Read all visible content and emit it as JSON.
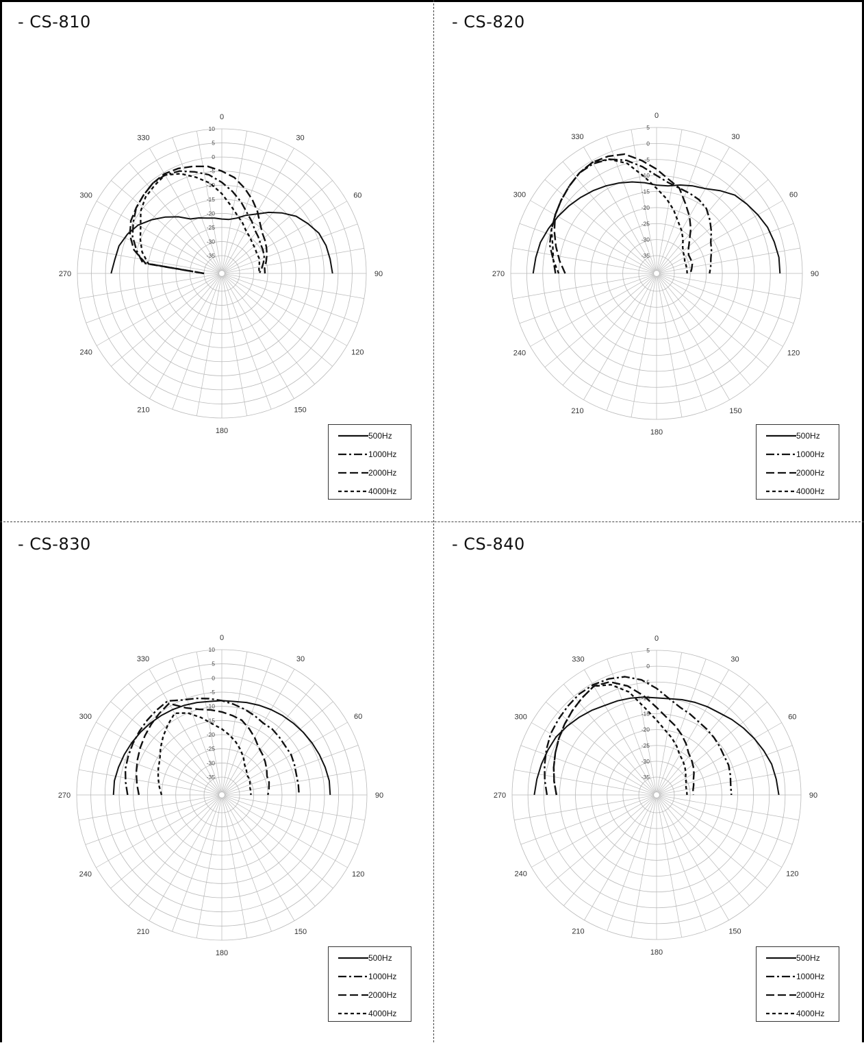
{
  "chart_data": [
    {
      "type": "polar",
      "title": "- CS-810",
      "angle_ticks": [
        "0",
        "30",
        "60",
        "90",
        "120",
        "150",
        "180",
        "210",
        "240",
        "270",
        "300",
        "330"
      ],
      "r_ticks": [
        "10",
        "5",
        "0",
        "-5",
        "-10",
        "-15",
        "-20",
        "-25",
        "-30",
        "-35"
      ],
      "rlim": [
        -35,
        10
      ],
      "angle_range": [
        -90,
        90
      ],
      "legend_placement": "bottom-right",
      "grid": true,
      "series": [
        {
          "name": "500Hz",
          "style": "solid",
          "values": [
            -2,
            -3,
            -3.5,
            -5,
            -7,
            -10,
            -13,
            -16,
            -19,
            -20,
            -21,
            -21.5,
            -22,
            -22,
            -21,
            -19,
            -17,
            -14,
            -11,
            -8,
            -6,
            -4,
            -3,
            -2.5,
            -2
          ]
        },
        {
          "name": "1000Hz",
          "style": "dash-dot",
          "values": [
            -35,
            -13,
            -10,
            -7,
            -5,
            -3,
            -2,
            -1,
            -1,
            -2,
            -4,
            -6,
            -9,
            -12,
            -15,
            -18,
            -20,
            -22,
            -23,
            -24,
            -24.5,
            -25,
            -26,
            -27,
            -28
          ]
        },
        {
          "name": "2000Hz",
          "style": "dash",
          "values": [
            -35,
            -14,
            -9,
            -6,
            -4,
            -3,
            -2,
            -1,
            -0.5,
            -1,
            -2,
            -3,
            -5,
            -7,
            -10,
            -13,
            -16,
            -19,
            -21,
            -22,
            -23,
            -24,
            -25,
            -26,
            -26
          ]
        },
        {
          "name": "4000Hz",
          "style": "dot",
          "values": [
            -35,
            -15,
            -12,
            -10,
            -8,
            -5,
            -3,
            -2,
            -1,
            -3,
            -6,
            -9,
            -13,
            -17,
            -20,
            -22,
            -24,
            -25,
            -26,
            -26.5,
            -27,
            -27,
            -27.5,
            -28,
            -28
          ]
        }
      ]
    },
    {
      "type": "polar",
      "title": "- CS-820",
      "angle_ticks": [
        "0",
        "30",
        "60",
        "90",
        "120",
        "150",
        "180",
        "210",
        "240",
        "270",
        "300",
        "330"
      ],
      "r_ticks": [
        "5",
        "0",
        "-5",
        "-10",
        "-15",
        "-20",
        "-25",
        "-30",
        "-35"
      ],
      "rlim": [
        -35,
        5
      ],
      "angle_range": [
        -90,
        90
      ],
      "legend_placement": "bottom-right",
      "grid": true,
      "series": [
        {
          "name": "500Hz",
          "style": "solid",
          "values": [
            -2,
            -2.5,
            -3,
            -4,
            -5,
            -6,
            -7,
            -8,
            -9,
            -10,
            -11,
            -12,
            -13,
            -13,
            -12,
            -11,
            -10,
            -8,
            -6,
            -5,
            -4,
            -3,
            -2.5,
            -2,
            -2
          ]
        },
        {
          "name": "1000Hz",
          "style": "dash-dot",
          "values": [
            -9,
            -8,
            -6,
            -5,
            -4,
            -3,
            -2,
            -1,
            -1,
            -2,
            -4,
            -7,
            -10,
            -12,
            -13,
            -13.5,
            -14,
            -15,
            -17,
            -19,
            -21,
            -22,
            -23,
            -23.5,
            -24
          ]
        },
        {
          "name": "2000Hz",
          "style": "dash",
          "values": [
            -12,
            -10,
            -8,
            -6,
            -4,
            -3,
            -2,
            -1,
            -0.5,
            -1,
            -2,
            -5,
            -8,
            -11,
            -13,
            -17,
            -20,
            -23,
            -26,
            -28,
            -29,
            -29,
            -29,
            -29.5,
            -30
          ]
        },
        {
          "name": "4000Hz",
          "style": "dot",
          "values": [
            -10,
            -8,
            -7,
            -5,
            -4,
            -3,
            -2,
            -1,
            -0.5,
            -2,
            -5,
            -10,
            -14,
            -17,
            -20,
            -23,
            -25,
            -27,
            -29,
            -30,
            -30.5,
            -31,
            -31,
            -31,
            -31
          ]
        }
      ]
    },
    {
      "type": "polar",
      "title": "- CS-830",
      "angle_ticks": [
        "0",
        "30",
        "60",
        "90",
        "120",
        "150",
        "180",
        "210",
        "240",
        "270",
        "300",
        "330"
      ],
      "r_ticks": [
        "10",
        "5",
        "0",
        "-5",
        "-10",
        "-15",
        "-20",
        "-25",
        "-30",
        "-35"
      ],
      "rlim": [
        -35,
        10
      ],
      "angle_range": [
        -90,
        90
      ],
      "legend_placement": "bottom-right",
      "grid": true,
      "series": [
        {
          "name": "500Hz",
          "style": "solid",
          "values": [
            -3,
            -3,
            -3.5,
            -4,
            -4.5,
            -5,
            -5.5,
            -6,
            -6.5,
            -7,
            -7.5,
            -8,
            -8,
            -8,
            -7.5,
            -7,
            -6.5,
            -6,
            -5.5,
            -5,
            -4.5,
            -4,
            -3.5,
            -3,
            -3
          ]
        },
        {
          "name": "1000Hz",
          "style": "dash-dot",
          "values": [
            -8,
            -7,
            -6,
            -5.5,
            -5,
            -4.5,
            -4,
            -3.5,
            -3,
            -5,
            -6,
            -7,
            -8,
            -9,
            -10,
            -11,
            -12,
            -12,
            -12.5,
            -13,
            -13,
            -13.5,
            -14,
            -14,
            -14
          ]
        },
        {
          "name": "2000Hz",
          "style": "dash",
          "values": [
            -12,
            -11,
            -10,
            -9,
            -8,
            -7,
            -6,
            -5,
            -4,
            -8,
            -10,
            -11,
            -12,
            -13,
            -14,
            -16,
            -18,
            -20,
            -21,
            -22,
            -23,
            -24,
            -24,
            -24.5,
            -25
          ]
        },
        {
          "name": "4000Hz",
          "style": "dot",
          "values": [
            -20,
            -19,
            -18,
            -17,
            -16,
            -14,
            -12,
            -10,
            -8,
            -10,
            -13,
            -16,
            -18,
            -20,
            -22,
            -24,
            -26,
            -28,
            -29,
            -30,
            -30,
            -30.5,
            -31,
            -31,
            -31
          ]
        }
      ]
    },
    {
      "type": "polar",
      "title": "- CS-840",
      "angle_ticks": [
        "0",
        "30",
        "60",
        "90",
        "120",
        "150",
        "180",
        "210",
        "240",
        "270",
        "300",
        "330"
      ],
      "r_ticks": [
        "5",
        "0",
        "-5",
        "-10",
        "-15",
        "-20",
        "-25",
        "-30",
        "-35"
      ],
      "rlim": [
        -35,
        5
      ],
      "angle_range": [
        -90,
        90
      ],
      "legend_placement": "bottom-right",
      "grid": true,
      "series": [
        {
          "name": "500Hz",
          "style": "solid",
          "values": [
            -2,
            -2.5,
            -3,
            -3.5,
            -4,
            -5,
            -6,
            -7,
            -8,
            -8.5,
            -9,
            -9.5,
            -10,
            -10,
            -9.5,
            -9,
            -8.5,
            -8,
            -7,
            -6,
            -5,
            -4,
            -3,
            -2.5,
            -2
          ]
        },
        {
          "name": "1000Hz",
          "style": "dash-dot",
          "values": [
            -6,
            -5,
            -4,
            -3,
            -2,
            -1.5,
            -1,
            -0.5,
            -0.5,
            -1,
            -2,
            -4,
            -7,
            -10,
            -12,
            -13,
            -14,
            -14.5,
            -15,
            -15.5,
            -16,
            -16,
            -16.5,
            -17,
            -17
          ]
        },
        {
          "name": "2000Hz",
          "style": "dash",
          "values": [
            -9,
            -8,
            -7,
            -6,
            -5,
            -4,
            -3,
            -2,
            -1,
            -2,
            -5,
            -9,
            -13,
            -16,
            -18,
            -20,
            -22,
            -24,
            -25,
            -26,
            -27,
            -28,
            -28.5,
            -29,
            -29
          ]
        },
        {
          "name": "4000Hz",
          "style": "dot",
          "values": [
            -9,
            -8,
            -7,
            -6,
            -5,
            -4,
            -3,
            -2,
            -1,
            -3,
            -7,
            -13,
            -17,
            -20,
            -22,
            -24,
            -26,
            -27,
            -28,
            -29,
            -30,
            -30.5,
            -31,
            -31,
            -31
          ]
        }
      ]
    }
  ]
}
